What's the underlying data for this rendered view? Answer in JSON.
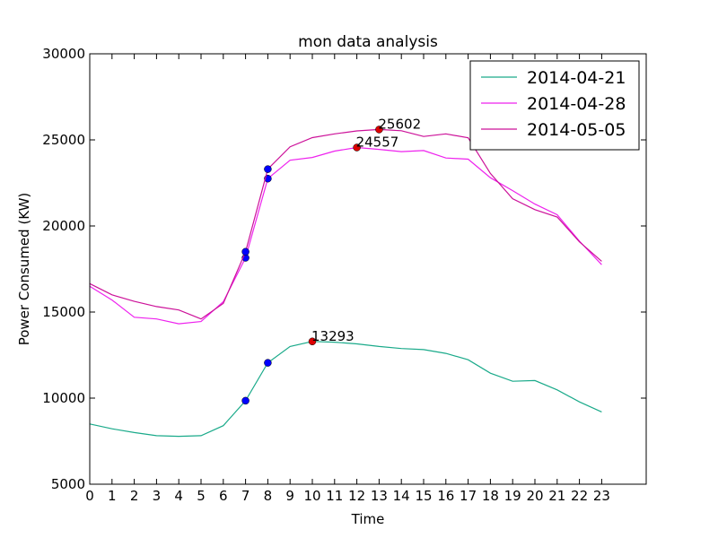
{
  "chart_data": {
    "type": "line",
    "title": "mon data analysis",
    "xlabel": "Time",
    "ylabel": "Power Consumed (KW)",
    "xlim": [
      0,
      25
    ],
    "ylim": [
      5000,
      30000
    ],
    "xticks": [
      0,
      1,
      2,
      3,
      4,
      5,
      6,
      7,
      8,
      9,
      10,
      11,
      12,
      13,
      14,
      15,
      16,
      17,
      18,
      19,
      20,
      21,
      22,
      23
    ],
    "yticks": [
      5000,
      10000,
      15000,
      20000,
      25000,
      30000
    ],
    "grid": false,
    "legend_position": "top-right",
    "x": [
      0,
      1,
      2,
      3,
      4,
      5,
      6,
      7,
      8,
      9,
      10,
      11,
      12,
      13,
      14,
      15,
      16,
      17,
      18,
      19,
      20,
      21,
      22,
      23
    ],
    "series": [
      {
        "name": "2014-04-21",
        "color": "#1aaa8a",
        "values": [
          8500,
          8220,
          8000,
          7820,
          7780,
          7820,
          8400,
          9850,
          12050,
          13000,
          13293,
          13250,
          13150,
          13000,
          12880,
          12820,
          12600,
          12230,
          11450,
          10980,
          11020,
          10480,
          9780,
          9200
        ],
        "markers": [
          {
            "x": 7,
            "y": 9850
          },
          {
            "x": 8,
            "y": 12050
          }
        ],
        "peak": {
          "x": 10,
          "y": 13293,
          "label": "13293"
        }
      },
      {
        "name": "2014-04-28",
        "color": "#ee22ee",
        "values": [
          16500,
          15700,
          14700,
          14600,
          14320,
          14450,
          15600,
          18150,
          22750,
          23820,
          23980,
          24350,
          24557,
          24450,
          24320,
          24380,
          23950,
          23880,
          22800,
          22050,
          21270,
          20650,
          19120,
          17750
        ],
        "markers": [
          {
            "x": 7,
            "y": 18150
          },
          {
            "x": 8,
            "y": 22750
          }
        ],
        "peak": {
          "x": 12,
          "y": 24557,
          "label": "24557"
        }
      },
      {
        "name": "2014-05-05",
        "color": "#cc1199",
        "values": [
          16650,
          16000,
          15620,
          15320,
          15120,
          14600,
          15500,
          18500,
          23300,
          24600,
          25130,
          25350,
          25520,
          25602,
          25530,
          25200,
          25350,
          25120,
          23050,
          21580,
          20950,
          20520,
          19080,
          17950
        ],
        "markers": [
          {
            "x": 7,
            "y": 18500
          },
          {
            "x": 8,
            "y": 23300
          }
        ],
        "peak": {
          "x": 13,
          "y": 25602,
          "label": "25602"
        }
      }
    ],
    "marker_color": "#0000ff",
    "peak_marker_color": "#dd0000"
  }
}
